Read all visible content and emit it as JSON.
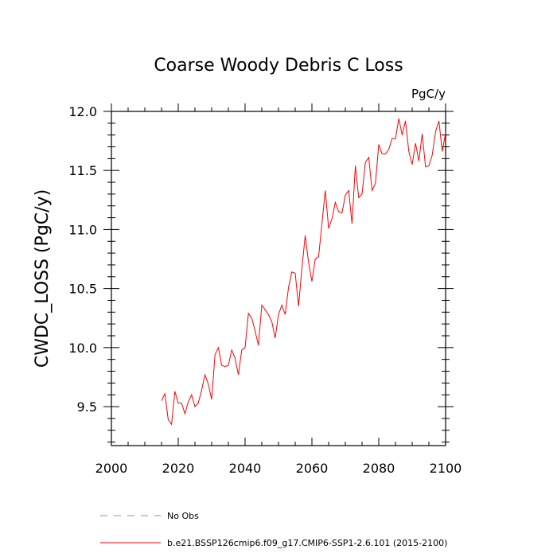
{
  "chart_data": {
    "type": "line",
    "title": "Coarse Woody Debris C Loss",
    "units_label": "PgC/y",
    "xlabel": "",
    "ylabel": "CWDC_LOSS  (PgC/y)",
    "xlim": [
      2000,
      2100
    ],
    "ylim": [
      9.17,
      12.0
    ],
    "x_ticks": [
      2000,
      2020,
      2040,
      2060,
      2080,
      2100
    ],
    "y_ticks": [
      9.5,
      10.0,
      10.5,
      11.0,
      11.5,
      12.0
    ],
    "y_tick_labels": [
      "9.5",
      "10.0",
      "10.5",
      "11.0",
      "11.5",
      "12.0"
    ],
    "grid": false,
    "legend_position": "bottom",
    "series": [
      {
        "name": "b.e21.BSSP126cmip6.f09_g17.CMIP6-SSP1-2.6.101 (2015-2100)",
        "color": "#ff0000",
        "style": "solid",
        "x": [
          2015,
          2016,
          2017,
          2018,
          2019,
          2020,
          2021,
          2022,
          2023,
          2024,
          2025,
          2026,
          2027,
          2028,
          2029,
          2030,
          2031,
          2032,
          2033,
          2034,
          2035,
          2036,
          2037,
          2038,
          2039,
          2040,
          2041,
          2042,
          2043,
          2044,
          2045,
          2046,
          2047,
          2048,
          2049,
          2050,
          2051,
          2052,
          2053,
          2054,
          2055,
          2056,
          2057,
          2058,
          2059,
          2060,
          2061,
          2062,
          2063,
          2064,
          2065,
          2066,
          2067,
          2068,
          2069,
          2070,
          2071,
          2072,
          2073,
          2074,
          2075,
          2076,
          2077,
          2078,
          2079,
          2080,
          2081,
          2082,
          2083,
          2084,
          2085,
          2086,
          2087,
          2088,
          2089,
          2090,
          2091,
          2092,
          2093,
          2094,
          2095,
          2096,
          2097,
          2098,
          2099,
          2100
        ],
        "values": [
          9.55,
          9.61,
          9.39,
          9.35,
          9.63,
          9.53,
          9.53,
          9.44,
          9.54,
          9.6,
          9.5,
          9.53,
          9.64,
          9.77,
          9.69,
          9.56,
          9.94,
          10.0,
          9.85,
          9.84,
          9.85,
          9.98,
          9.91,
          9.77,
          9.98,
          10.0,
          10.29,
          10.25,
          10.14,
          10.02,
          10.36,
          10.32,
          10.28,
          10.22,
          10.08,
          10.28,
          10.36,
          10.28,
          10.51,
          10.64,
          10.63,
          10.35,
          10.67,
          10.95,
          10.72,
          10.56,
          10.75,
          10.77,
          11.05,
          11.33,
          11.01,
          11.09,
          11.23,
          11.15,
          11.14,
          11.29,
          11.33,
          11.05,
          11.54,
          11.27,
          11.3,
          11.57,
          11.61,
          11.33,
          11.39,
          11.72,
          11.64,
          11.64,
          11.68,
          11.77,
          11.77,
          11.94,
          11.8,
          11.92,
          11.66,
          11.55,
          11.73,
          11.58,
          11.81,
          11.53,
          11.54,
          11.63,
          11.83,
          11.92,
          11.66,
          11.82
        ]
      },
      {
        "name": "No Obs",
        "color": "#8888ee",
        "style": "dashed",
        "x": [],
        "values": []
      }
    ]
  }
}
